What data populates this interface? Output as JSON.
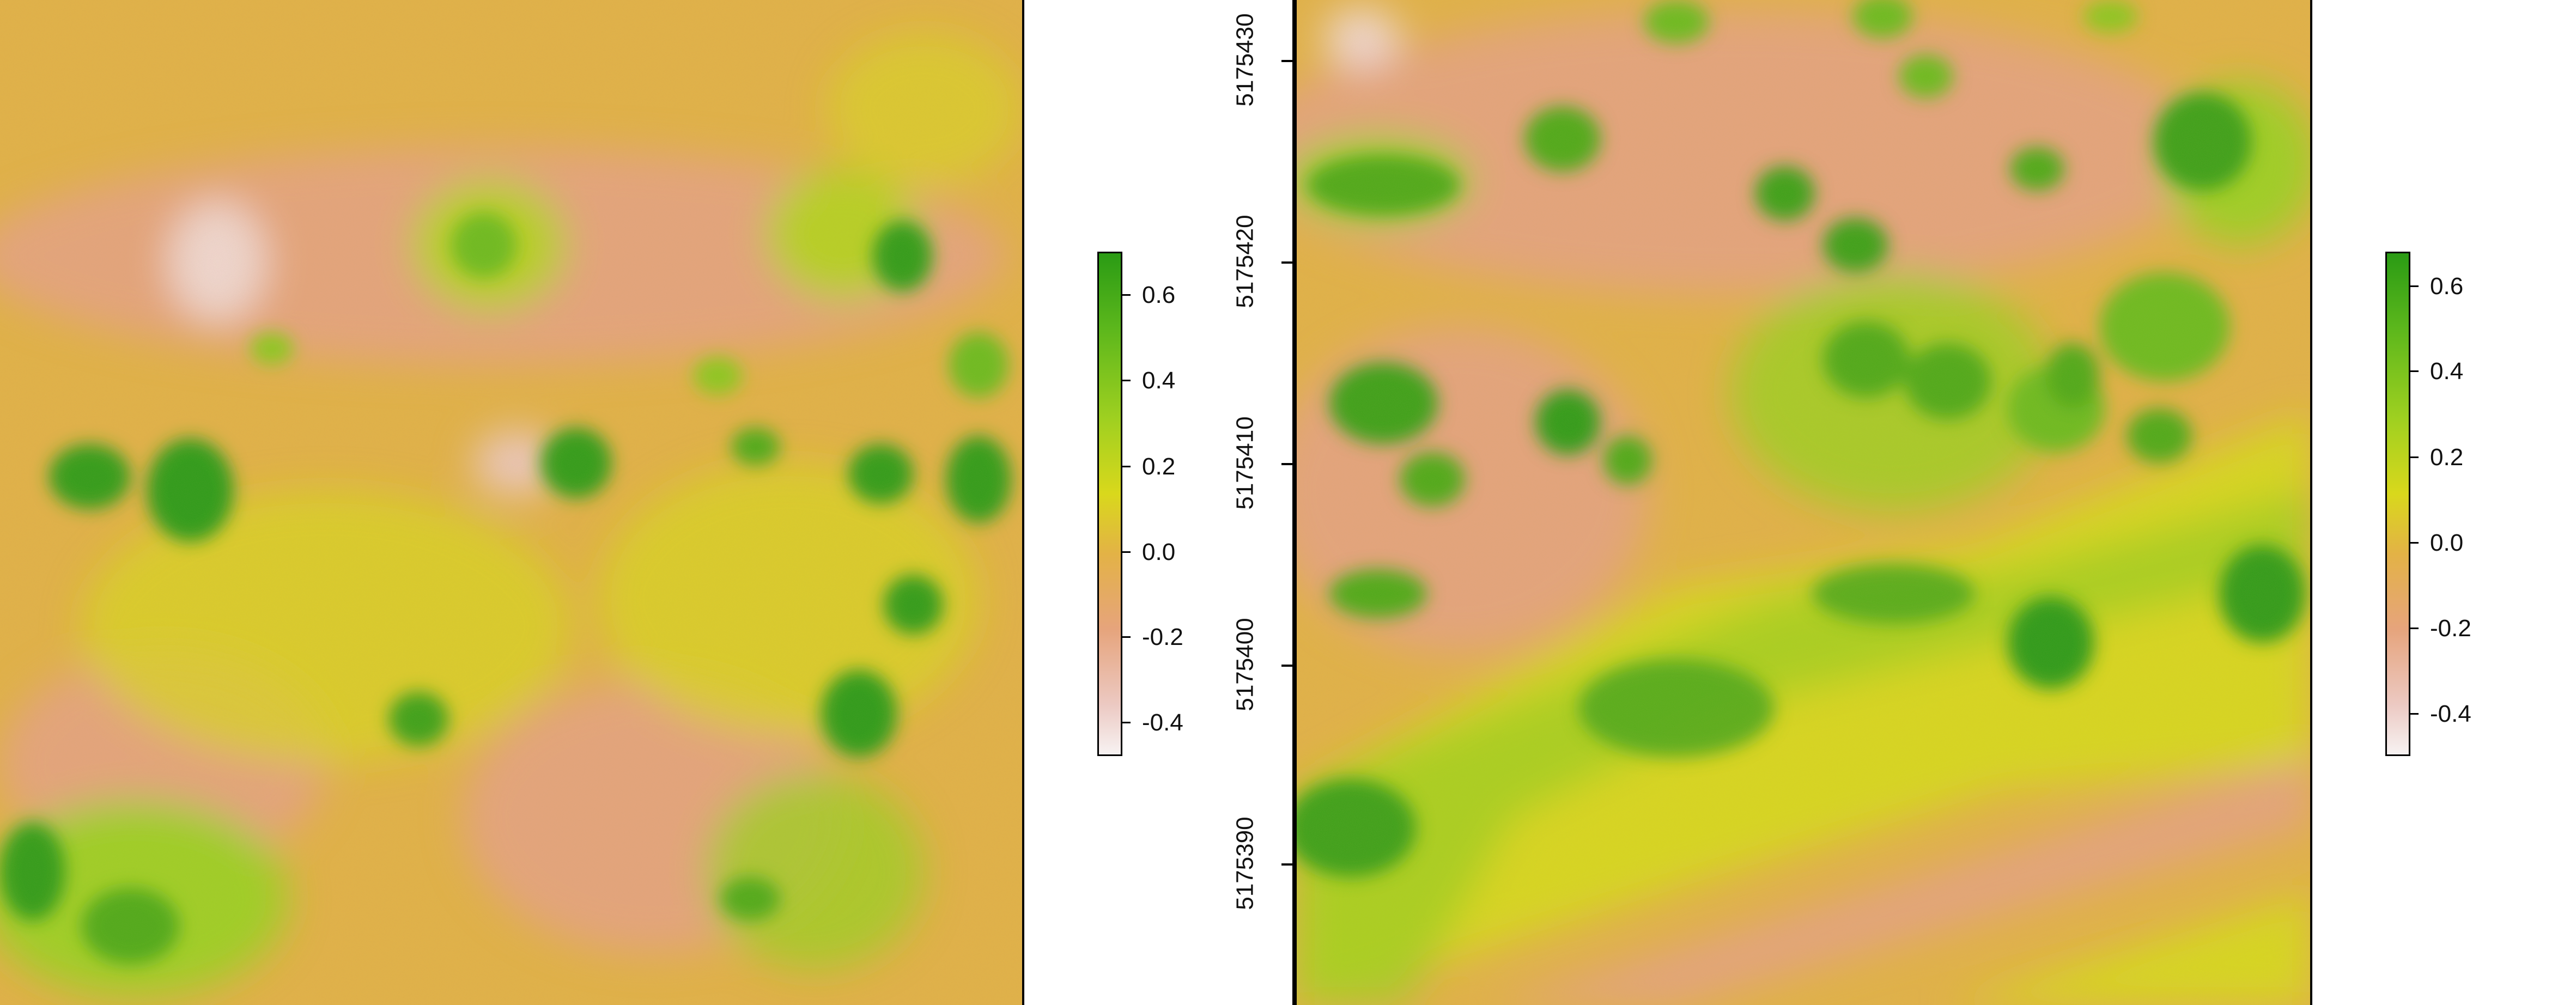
{
  "left_map": {
    "legend": {
      "ticks": [
        "0.6",
        "0.4",
        "0.2",
        "0.0",
        "-0.2",
        "-0.4"
      ],
      "range": [
        -0.5,
        0.7
      ]
    }
  },
  "right_map": {
    "y_axis": {
      "ticks": [
        "5175430",
        "5175420",
        "5175410",
        "5175400",
        "5175390"
      ]
    },
    "legend": {
      "ticks": [
        "0.6",
        "0.4",
        "0.2",
        "0.0",
        "-0.2",
        "-0.4"
      ],
      "range": [
        -0.5,
        0.7
      ]
    }
  },
  "colors": {
    "high_green": "#2a9b14",
    "mid_yellow": "#d9d81c",
    "low_orange": "#e3b246",
    "lowest_pink": "#f7f2f2"
  }
}
